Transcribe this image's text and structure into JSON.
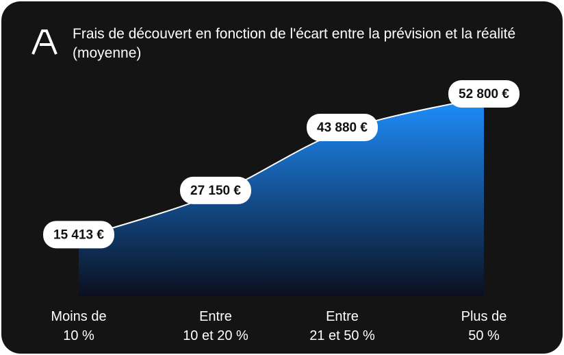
{
  "chart_data": {
    "type": "area",
    "title": "Frais de découvert en fonction de l'écart entre la prévision et la réalité (moyenne)",
    "categories": [
      "Moins de\n10 %",
      "Entre\n10 et 20 %",
      "Entre\n21 et 50 %",
      "Plus de\n50 %"
    ],
    "values": [
      15413,
      27150,
      43880,
      52800
    ],
    "value_labels": [
      "15 413 €",
      "27 150 €",
      "43 880 €",
      "52 800 €"
    ],
    "color": "#1e8fff"
  }
}
